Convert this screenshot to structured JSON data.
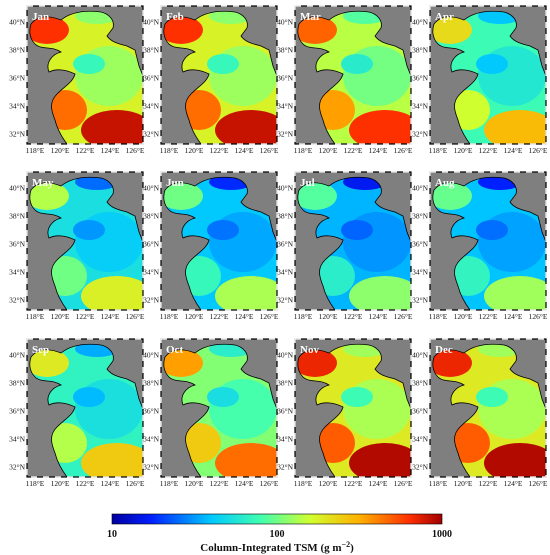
{
  "panels": [
    {
      "month": "Jan",
      "level": 0.78
    },
    {
      "month": "Feb",
      "level": 0.78
    },
    {
      "month": "Mar",
      "level": 0.72
    },
    {
      "month": "Apr",
      "level": 0.55
    },
    {
      "month": "May",
      "level": 0.45
    },
    {
      "month": "Jun",
      "level": 0.38
    },
    {
      "month": "Jul",
      "level": 0.35
    },
    {
      "month": "Aug",
      "level": 0.37
    },
    {
      "month": "Sep",
      "level": 0.52
    },
    {
      "month": "Oct",
      "level": 0.65
    },
    {
      "month": "Nov",
      "level": 0.8
    },
    {
      "month": "Dec",
      "level": 0.8
    }
  ],
  "lat_ticks": [
    "40°N",
    "38°N",
    "36°N",
    "34°N",
    "32°N"
  ],
  "lon_ticks": [
    "118°E",
    "120°E",
    "122°E",
    "124°E",
    "126°E"
  ],
  "colorbar": {
    "min_label": "10",
    "mid_label": "100",
    "max_label": "1000",
    "title_prefix": "Column-Integrated TSM (g m",
    "title_exp": "−2",
    "title_suffix": ")",
    "scale": "log"
  },
  "colors": {
    "land": "#7f7f7f",
    "coast": "#000000"
  }
}
